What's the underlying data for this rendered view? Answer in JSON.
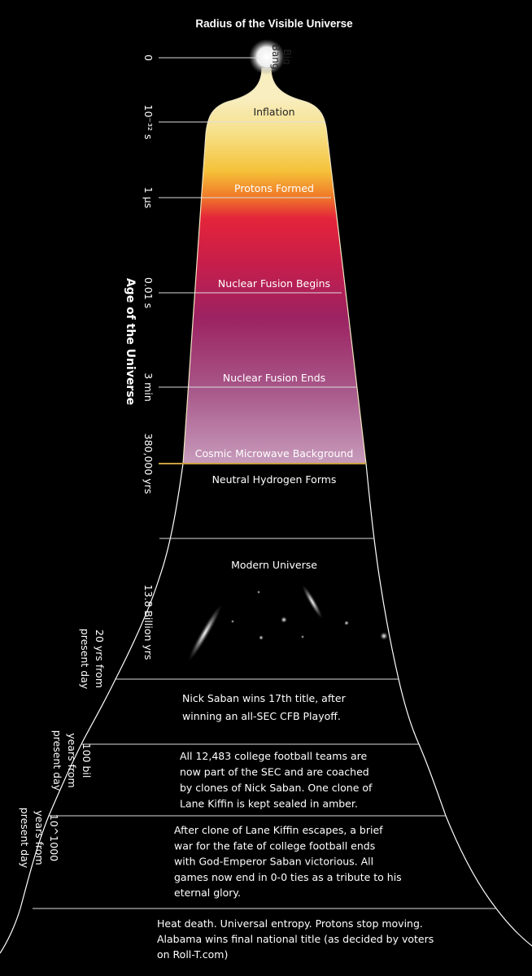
{
  "title": "Radius of the Visible Universe",
  "axis_title": "Age of the Universe",
  "big_bang": [
    "Big",
    "Bang"
  ],
  "time_marks": [
    [
      "0"
    ],
    [
      "10⁻³² s"
    ],
    [
      "1 μs"
    ],
    [
      "0.01 s"
    ],
    [
      "3 min"
    ],
    [
      "380,000 yrs"
    ],
    [
      "13.8 Billion yrs"
    ],
    [
      "20 yrs from",
      "present day"
    ],
    [
      "100 bil",
      "years from",
      "present day"
    ],
    [
      "10^1000",
      "years from",
      "present day"
    ]
  ],
  "epochs": [
    [
      "Inflation"
    ],
    [
      "Protons Formed"
    ],
    [
      "Nuclear Fusion Begins"
    ],
    [
      "Nuclear Fusion Ends"
    ],
    [
      "Cosmic Microwave Background"
    ],
    [
      "Neutral Hydrogen Forms"
    ],
    [
      "Modern Universe"
    ],
    [
      "Nick Saban wins 17th title, after",
      "winning an all-SEC CFB Playoff."
    ],
    [
      "All 12,483 college football teams are",
      "now part of the SEC and are coached",
      "by clones of Nick Saban. One clone of",
      "Lane Kiffin is kept sealed in amber."
    ],
    [
      "After clone of Lane Kiffin escapes, a brief",
      "war for the fate of college football ends",
      "with God-Emperor Saban victorious. All",
      "games now end in 0-0 ties as a tribute to his",
      "eternal glory."
    ],
    [
      "Heat death. Universal entropy. Protons stop moving.",
      "Alabama wins final national title (as decided by voters",
      "on Roll-T.com)"
    ]
  ]
}
